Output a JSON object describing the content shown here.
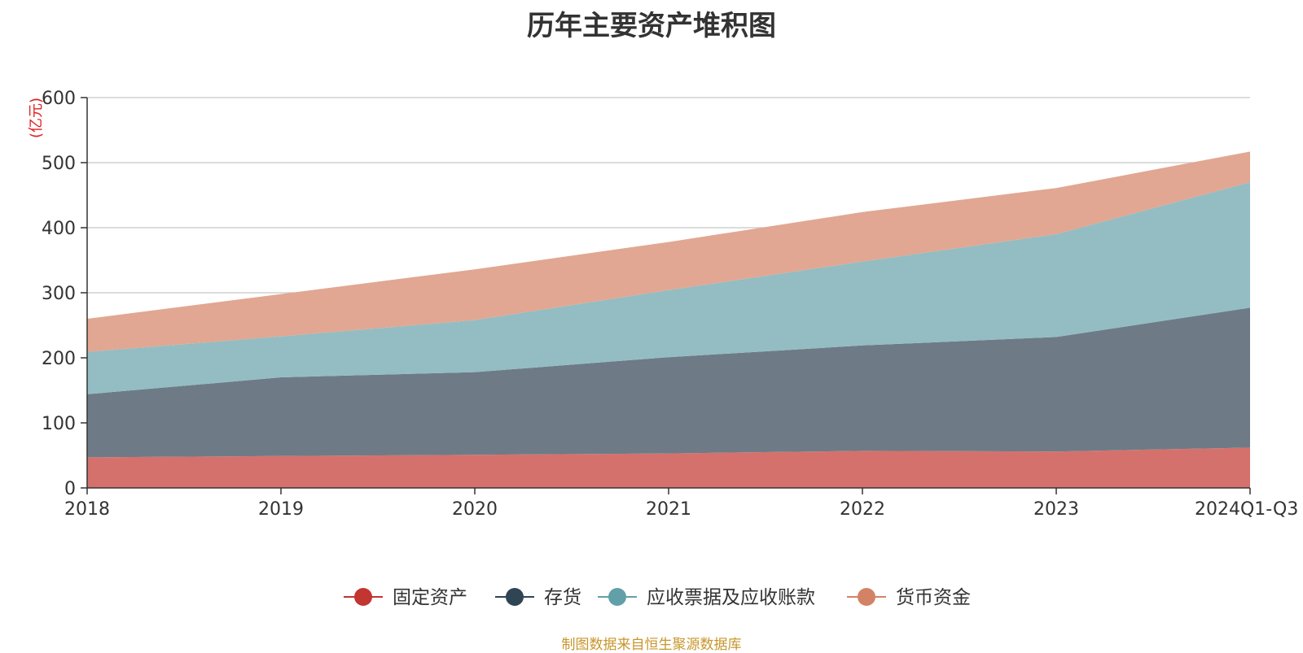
{
  "chart_data": {
    "type": "area",
    "stacked": true,
    "title": "历年主要资产堆积图",
    "unit_label": "(亿元)",
    "categories": [
      "2018",
      "2019",
      "2020",
      "2021",
      "2022",
      "2023",
      "2024Q1-Q3"
    ],
    "series": [
      {
        "name": "固定资产",
        "color": "#d5716d",
        "legend_color": "#c23531",
        "values": [
          47,
          49,
          51,
          53,
          57,
          56,
          62
        ]
      },
      {
        "name": "存货",
        "color": "#6e7b86",
        "legend_color": "#2f4554",
        "values": [
          97,
          121,
          127,
          148,
          162,
          176,
          215
        ]
      },
      {
        "name": "应收票据及应收账款",
        "color": "#93bdc2",
        "legend_color": "#61a0a8",
        "values": [
          65,
          63,
          80,
          103,
          129,
          158,
          193
        ]
      },
      {
        "name": "货币资金",
        "color": "#e1a792",
        "legend_color": "#d48265",
        "values": [
          51,
          65,
          78,
          74,
          76,
          71,
          47
        ]
      }
    ],
    "ylim": [
      0,
      600
    ],
    "yticks": [
      "0",
      "100",
      "200",
      "300",
      "400",
      "500",
      "600"
    ],
    "grid": true,
    "legend_position": "bottom"
  },
  "source_note": "制图数据来自恒生聚源数据库"
}
